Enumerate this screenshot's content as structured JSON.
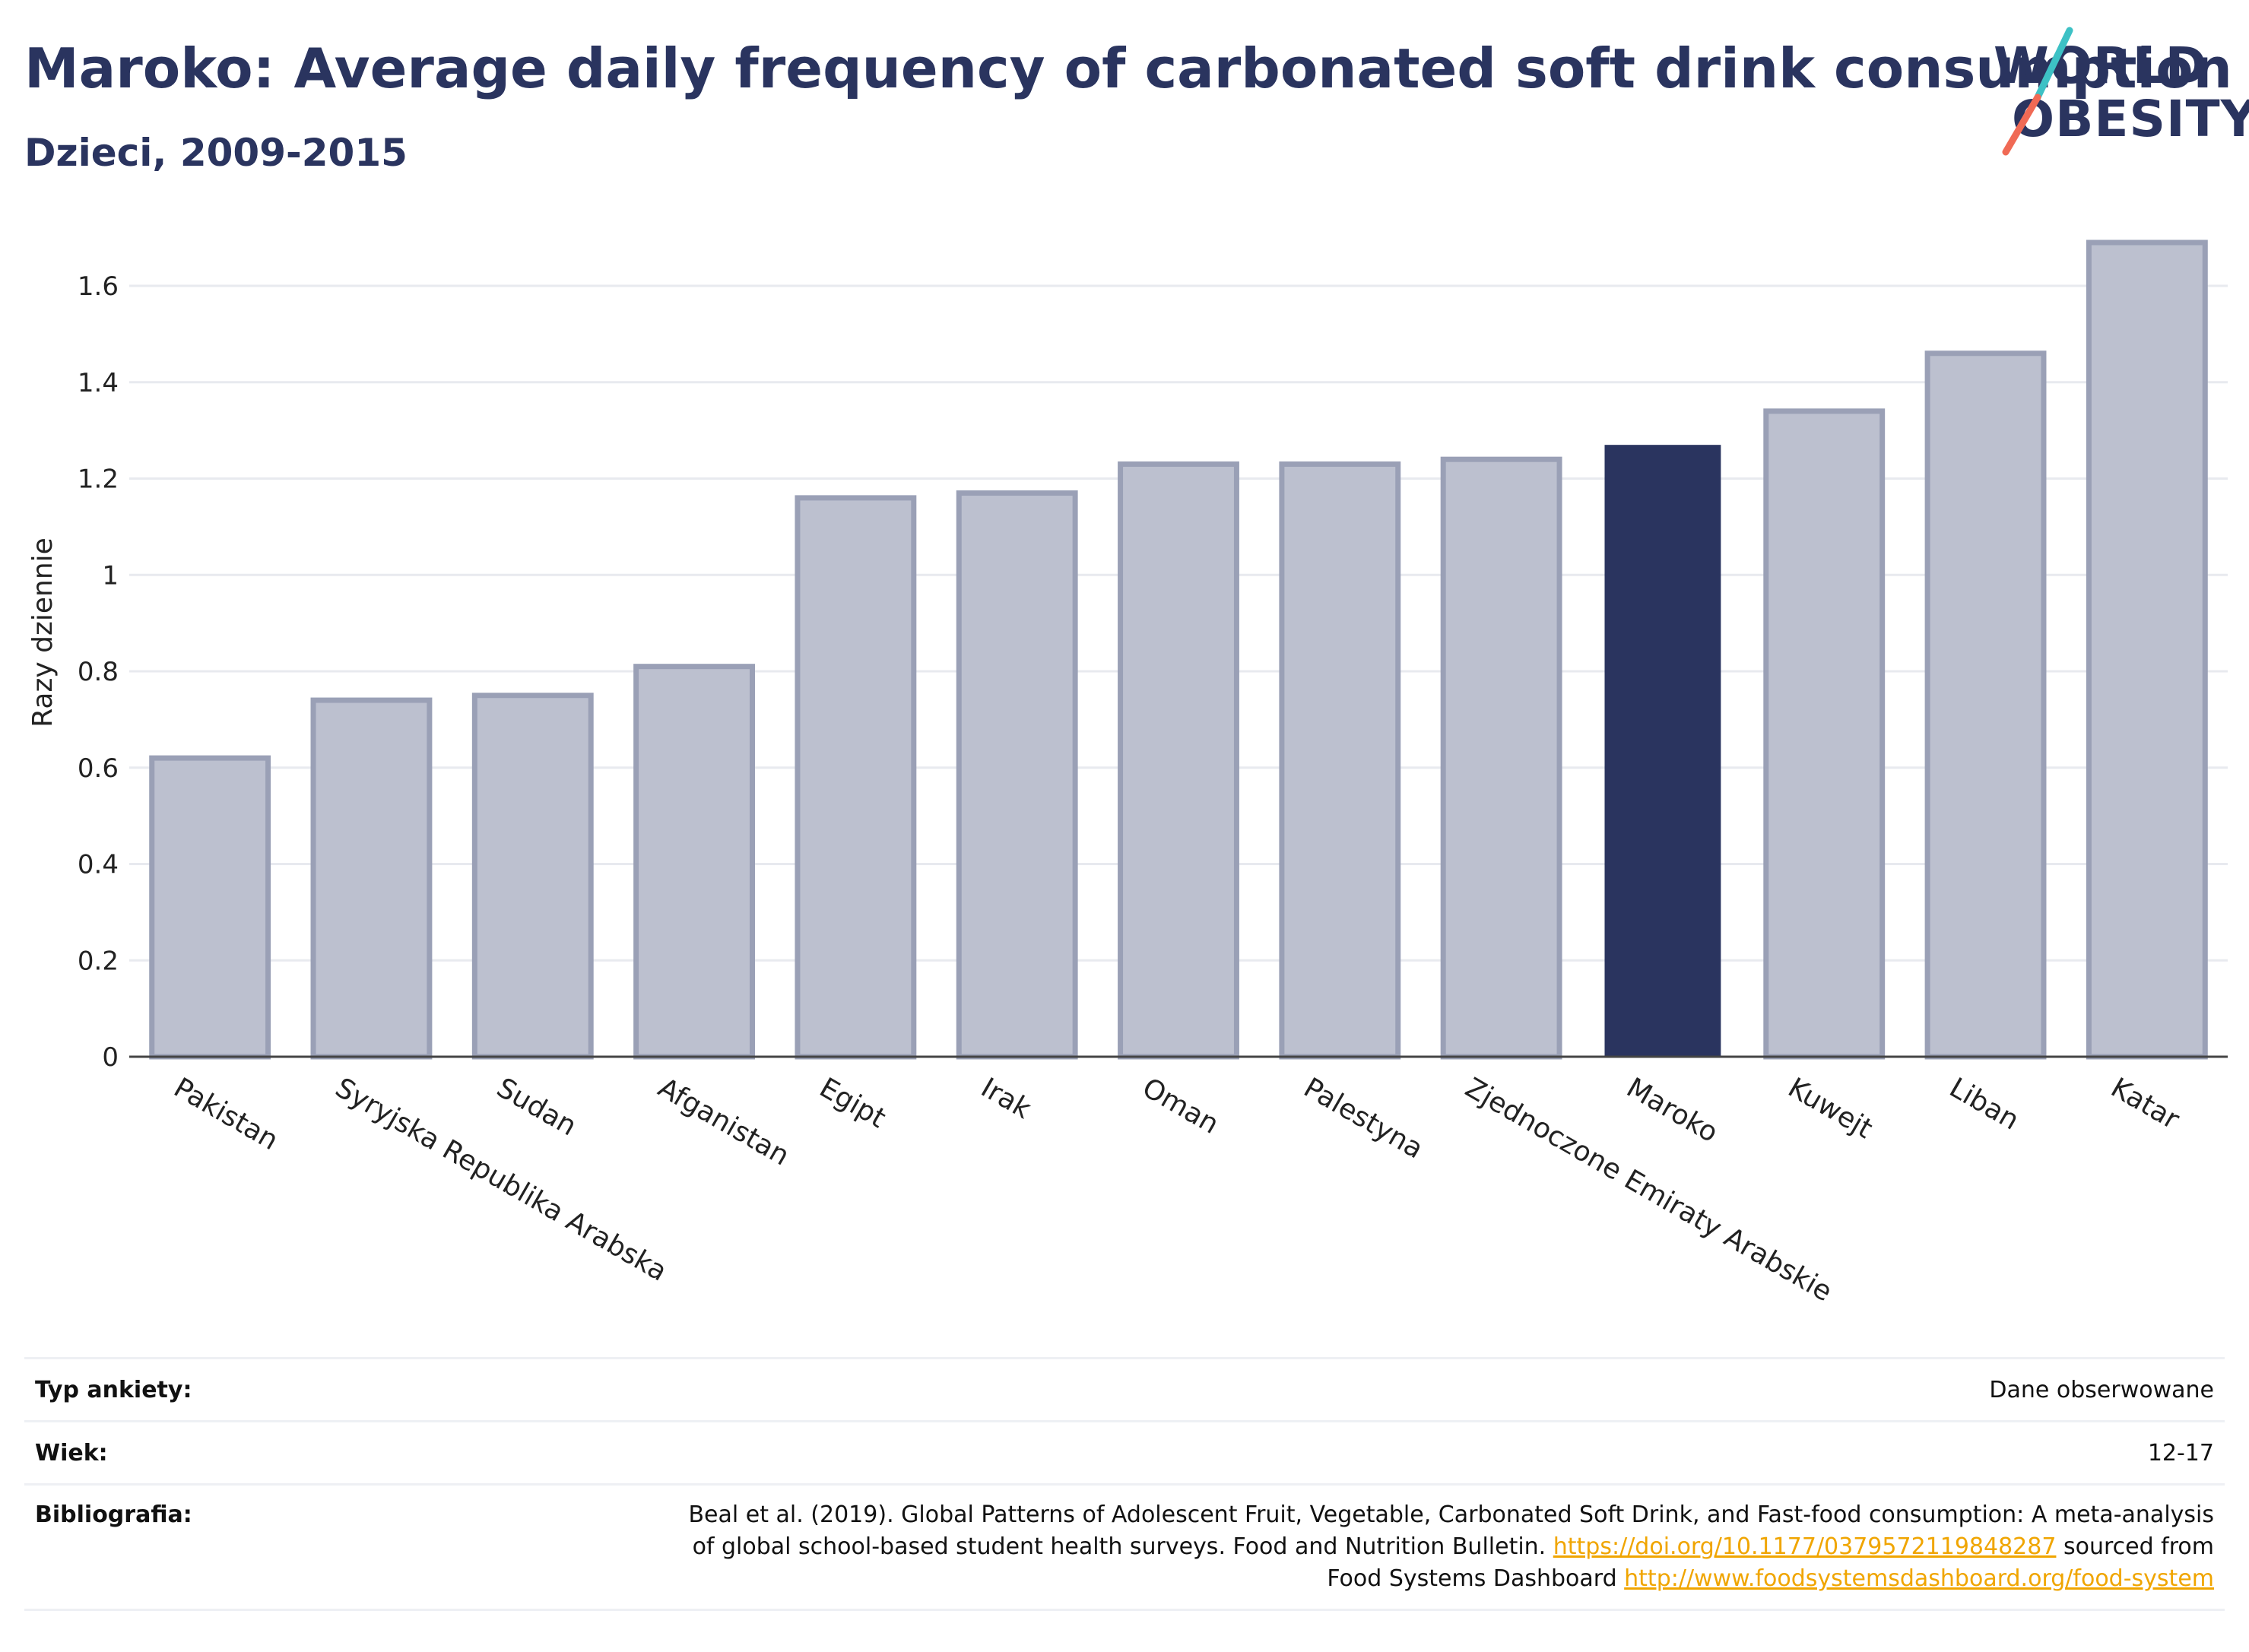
{
  "header": {
    "title": "Maroko: Average daily frequency of carbonated soft drink consumption",
    "subtitle": "Dzieci, 2009-2015"
  },
  "logo": {
    "line1": "WORLD",
    "line2": "OBESITY"
  },
  "colors": {
    "highlight": "#2a345f",
    "bar": "#bcc0cf",
    "bar_border": "#9aa0b6",
    "link": "#f0a500"
  },
  "chart_data": {
    "type": "bar",
    "title": "Maroko: Average daily frequency of carbonated soft drink consumption",
    "subtitle": "Dzieci, 2009-2015",
    "ylabel": "Razy dziennie",
    "xlabel": "",
    "ylim": [
      0,
      1.72
    ],
    "yticks": [
      0,
      0.2,
      0.4,
      0.6,
      0.8,
      1,
      1.2,
      1.4,
      1.6
    ],
    "ytick_labels": [
      "0",
      "0.2",
      "0.4",
      "0.6",
      "0.8",
      "1",
      "1.2",
      "1.4",
      "1.6"
    ],
    "grid": true,
    "highlight": "Maroko",
    "categories": [
      "Pakistan",
      "Syryjska Republika Arabska",
      "Sudan",
      "Afganistan",
      "Egipt",
      "Irak",
      "Oman",
      "Palestyna",
      "Zjednoczone Emiraty Arabskie",
      "Maroko",
      "Kuwejt",
      "Liban",
      "Katar"
    ],
    "values": [
      0.62,
      0.74,
      0.75,
      0.81,
      1.16,
      1.17,
      1.23,
      1.23,
      1.24,
      1.27,
      1.34,
      1.46,
      1.69
    ]
  },
  "meta": {
    "survey_label": "Typ ankiety:",
    "survey_value": "Dane obserwowane",
    "age_label": "Wiek:",
    "age_value": "12-17",
    "bib_label": "Bibliografia:",
    "bib_text1": "Beal et al. (2019). Global Patterns of Adolescent Fruit, Vegetable, Carbonated Soft Drink, and Fast-food consumption: A meta-analysis",
    "bib_text2": "of global school-based student health surveys. Food and Nutrition Bulletin. ",
    "bib_link1": "https://doi.org/10.1177/0379572119848287",
    "bib_text3": " sourced from",
    "bib_text4": "Food Systems Dashboard ",
    "bib_link2": "http://www.foodsystemsdashboard.org/food-system"
  }
}
